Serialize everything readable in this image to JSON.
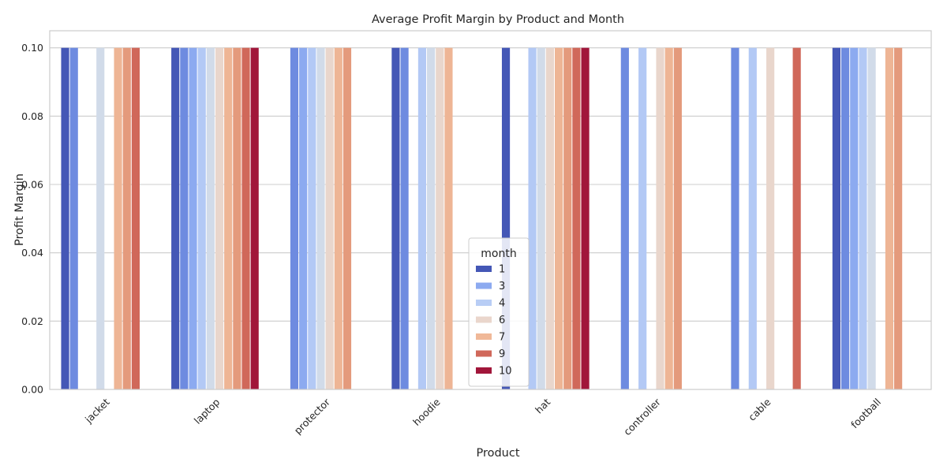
{
  "chart_data": {
    "type": "bar",
    "title": "Average Profit Margin by Product and Month",
    "xlabel": "Product",
    "ylabel": "Profit Margin",
    "ylim": [
      0,
      0.105
    ],
    "yticks": [
      0.0,
      0.02,
      0.04,
      0.06,
      0.08,
      0.1
    ],
    "ytick_labels": [
      "0.00",
      "0.02",
      "0.04",
      "0.06",
      "0.08",
      "0.10"
    ],
    "grid": true,
    "legend": {
      "title": "month",
      "placement": "bottom-center",
      "entries": [
        "1",
        "3",
        "4",
        "6",
        "7",
        "9",
        "10"
      ],
      "colors": [
        "#4457b6",
        "#8caaf0",
        "#b8cdf5",
        "#ead6cc",
        "#f0b898",
        "#d0685a",
        "#a1163a"
      ]
    },
    "categories": [
      "jacket",
      "laptop",
      "protector",
      "hoodie",
      "hat",
      "controller",
      "cable",
      "football"
    ],
    "month_slots": [
      1,
      2,
      3,
      4,
      5,
      6,
      7,
      8,
      9,
      10
    ],
    "slot_colors": [
      "#4457b6",
      "#6e8be0",
      "#8caaf0",
      "#b3c9f5",
      "#d1dbe9",
      "#e9d6cc",
      "#eeb595",
      "#e49a7c",
      "#d0685a",
      "#a1163a"
    ],
    "values": [
      [
        0.1,
        0.1,
        null,
        null,
        0.1,
        null,
        0.1,
        0.1,
        0.1,
        null
      ],
      [
        0.1,
        0.1,
        0.1,
        0.1,
        0.1,
        0.1,
        0.1,
        0.1,
        0.1,
        0.1
      ],
      [
        null,
        0.1,
        0.1,
        0.1,
        0.1,
        0.1,
        0.1,
        0.1,
        null,
        null
      ],
      [
        0.1,
        0.1,
        null,
        0.1,
        0.1,
        0.1,
        0.1,
        null,
        null,
        null
      ],
      [
        0.1,
        null,
        null,
        0.1,
        0.1,
        0.1,
        0.1,
        0.1,
        0.1,
        0.1
      ],
      [
        null,
        0.1,
        null,
        0.1,
        null,
        0.1,
        0.1,
        0.1,
        null,
        null
      ],
      [
        null,
        0.1,
        null,
        0.1,
        null,
        0.1,
        null,
        null,
        0.1,
        null
      ],
      [
        0.1,
        0.1,
        0.1,
        0.1,
        0.1,
        null,
        0.1,
        0.1,
        null,
        null
      ]
    ]
  }
}
